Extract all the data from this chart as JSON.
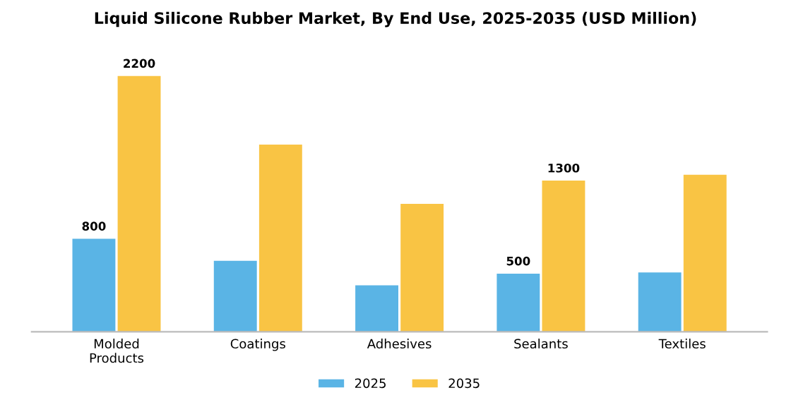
{
  "chart_data": {
    "type": "bar",
    "title": "Liquid Silicone Rubber Market, By End Use, 2025-2035 (USD Million)",
    "categories": [
      "Molded\nProducts",
      "Coatings",
      "Adhesives",
      "Sealants",
      "Textiles"
    ],
    "series": [
      {
        "name": "2025",
        "color": "#5ab4e5",
        "values": [
          800,
          610,
          400,
          500,
          510
        ],
        "value_labels": [
          "800",
          null,
          null,
          "500",
          null
        ]
      },
      {
        "name": "2035",
        "color": "#f9c444",
        "values": [
          2200,
          1610,
          1100,
          1300,
          1350
        ],
        "value_labels": [
          "2200",
          null,
          null,
          "1300",
          null
        ]
      }
    ],
    "tick_labels": "x",
    "grid": false,
    "legend": "bottom"
  }
}
